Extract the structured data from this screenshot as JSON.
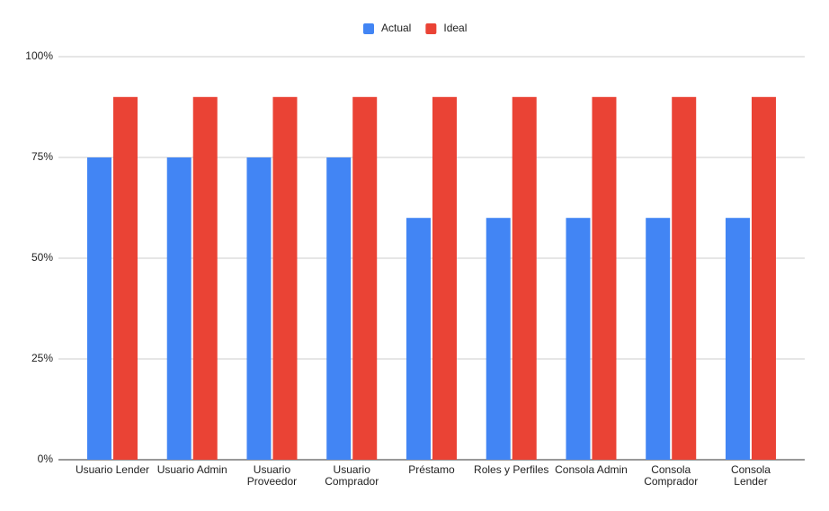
{
  "chart_data": {
    "type": "bar",
    "categories": [
      "Usuario Lender",
      "Usuario Admin",
      "Usuario Proveedor",
      "Usuario Comprador",
      "Préstamo",
      "Roles y Perfiles",
      "Consola Admin",
      "Consola Comprador",
      "Consola Lender"
    ],
    "series": [
      {
        "name": "Actual",
        "color": "#4285f4",
        "values": [
          75,
          75,
          75,
          75,
          60,
          60,
          60,
          60,
          60
        ]
      },
      {
        "name": "Ideal",
        "color": "#ea4335",
        "values": [
          90,
          90,
          90,
          90,
          90,
          90,
          90,
          90,
          90
        ]
      }
    ],
    "ylim": [
      0,
      100
    ],
    "yticks": [
      {
        "value": 0,
        "label": "0%"
      },
      {
        "value": 25,
        "label": "25%"
      },
      {
        "value": 50,
        "label": "50%"
      },
      {
        "value": 75,
        "label": "75%"
      },
      {
        "value": 100,
        "label": "100%"
      }
    ],
    "grid": true,
    "legend": "top"
  }
}
